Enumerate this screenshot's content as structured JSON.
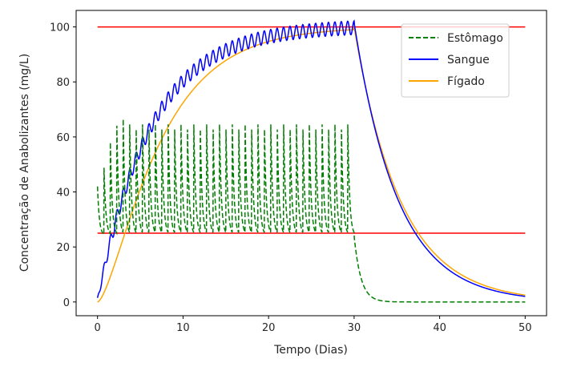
{
  "chart_data": {
    "type": "line",
    "title": "",
    "xlabel": "Tempo (Dias)",
    "ylabel": "Concentração de Anabolizantes (mg/L)",
    "xlim": [
      -2.5,
      52.5
    ],
    "ylim": [
      -5,
      106
    ],
    "xticks": [
      0,
      10,
      20,
      30,
      40,
      50
    ],
    "yticks": [
      0,
      20,
      40,
      60,
      80,
      100
    ],
    "grid": false,
    "legend_position": "top-right",
    "dose_interval_days": 0.75,
    "dosing_end_day": 30,
    "thresholds": [
      {
        "y": 100,
        "x": [
          0,
          50
        ],
        "color": "#ff0000"
      },
      {
        "y": 25,
        "x": [
          0,
          50
        ],
        "color": "#ff0000"
      }
    ],
    "series": [
      {
        "name": "Estômago",
        "color": "#008000",
        "style": "dashed",
        "peak": 66.5,
        "trough": 24.0
      },
      {
        "name": "Sangue",
        "color": "#0000ff",
        "style": "solid",
        "plateau": 100,
        "ripple": 2.5,
        "final": 2
      },
      {
        "name": "Fígado",
        "color": "#ffa500",
        "style": "solid",
        "plateau": 100,
        "final": 2.5
      }
    ]
  }
}
